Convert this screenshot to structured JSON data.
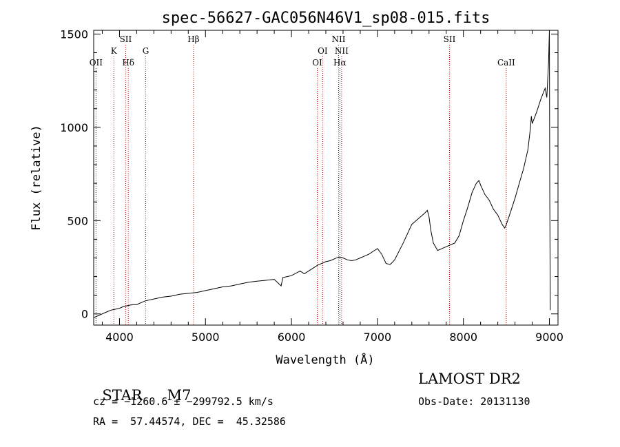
{
  "chart_data": {
    "type": "line",
    "title": "spec-56627-GAC056N46V1_sp08-015.fits",
    "xlabel": "Wavelength (Å)",
    "ylabel": "Flux (relative)",
    "xlim": [
      3700,
      9100
    ],
    "ylim": [
      -60,
      1520
    ],
    "xticks": [
      4000,
      5000,
      6000,
      7000,
      8000,
      9000
    ],
    "yticks": [
      0,
      500,
      1000,
      1500
    ],
    "xtick_labels": [
      "4000",
      "5000",
      "6000",
      "7000",
      "8000",
      "9000"
    ],
    "ytick_labels": [
      "0",
      "500",
      "1000",
      "1500"
    ],
    "grid": false,
    "series": [
      {
        "x": [
          3700,
          3750,
          3800,
          3850,
          3900,
          3950,
          4000,
          4050,
          4100,
          4150,
          4200,
          4300,
          4400,
          4500,
          4600,
          4700,
          4800,
          4900,
          5000,
          5100,
          5200,
          5300,
          5400,
          5500,
          5600,
          5700,
          5800,
          5880,
          5900,
          5950,
          6000,
          6100,
          6150,
          6200,
          6250,
          6300,
          6350,
          6400,
          6450,
          6500,
          6550,
          6600,
          6650,
          6700,
          6750,
          6800,
          6850,
          6900,
          6950,
          7000,
          7050,
          7100,
          7150,
          7200,
          7300,
          7400,
          7500,
          7550,
          7580,
          7600,
          7620,
          7650,
          7700,
          7750,
          7800,
          7850,
          7900,
          7950,
          8000,
          8050,
          8100,
          8150,
          8180,
          8200,
          8250,
          8300,
          8350,
          8400,
          8450,
          8480,
          8500,
          8550,
          8600,
          8650,
          8700,
          8750,
          8780,
          8790,
          8800,
          8850,
          8900,
          8950,
          8970,
          8990,
          9000,
          9005,
          9010
        ],
        "y": [
          -20,
          -10,
          0,
          10,
          20,
          25,
          30,
          40,
          45,
          50,
          50,
          70,
          80,
          90,
          95,
          105,
          110,
          115,
          125,
          135,
          145,
          150,
          160,
          170,
          175,
          180,
          185,
          150,
          195,
          200,
          205,
          230,
          215,
          230,
          245,
          260,
          270,
          280,
          285,
          295,
          305,
          300,
          290,
          285,
          290,
          300,
          310,
          320,
          335,
          350,
          320,
          270,
          265,
          290,
          380,
          480,
          520,
          540,
          555,
          520,
          450,
          380,
          340,
          350,
          360,
          370,
          380,
          420,
          500,
          570,
          650,
          700,
          715,
          690,
          640,
          610,
          560,
          530,
          480,
          460,
          480,
          550,
          620,
          700,
          780,
          880,
          1000,
          1060,
          1020,
          1080,
          1150,
          1210,
          1160,
          1350,
          1520,
          600,
          20
        ]
      }
    ],
    "annotations": [
      {
        "label": "OII",
        "x": 3727,
        "row": 3
      },
      {
        "label": "K",
        "x": 3934,
        "row": 2
      },
      {
        "label": "SII",
        "x": 4072,
        "row": 1
      },
      {
        "label": "Hδ",
        "x": 4102,
        "row": 3
      },
      {
        "label": "G",
        "x": 4305,
        "row": 2
      },
      {
        "label": "Hβ",
        "x": 4861,
        "row": 1
      },
      {
        "label": "OI",
        "x": 6300,
        "row": 3
      },
      {
        "label": "OI",
        "x": 6363,
        "row": 2
      },
      {
        "label": "NII",
        "x": 6548,
        "row": 1
      },
      {
        "label": "NII",
        "x": 6583,
        "row": 2
      },
      {
        "label": "Hα",
        "x": 6563,
        "row": 3
      },
      {
        "label": "SII",
        "x": 7838,
        "row": 1
      },
      {
        "label": "CaII",
        "x": 8498,
        "row": 3
      }
    ],
    "line_color": "#000000",
    "marker_color": "#b00000"
  },
  "info": {
    "class_label": "STAR",
    "subclass": "M7",
    "cz_line": "cz = −1260.6 ± −299792.5 km/s",
    "coords_line": "RA =  57.44574, DEC =  45.32586",
    "survey": "LAMOST DR2",
    "obs_date": "Obs-Date: 20131130"
  }
}
